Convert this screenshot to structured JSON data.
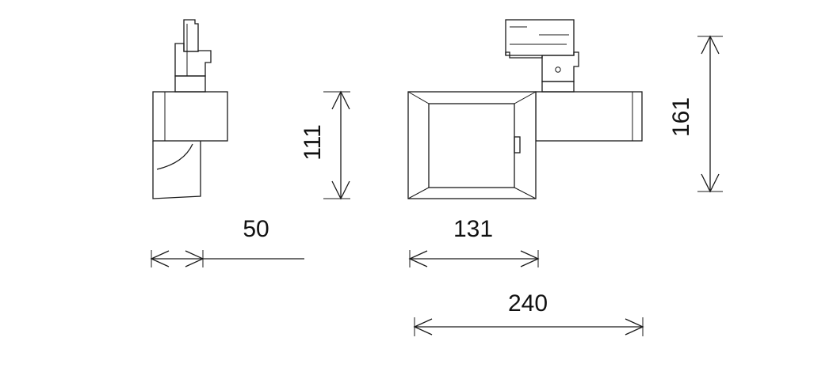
{
  "dimensions": {
    "height_side": "111",
    "depth_side": "50",
    "head_width": "131",
    "overall_length": "240",
    "overall_height": "161"
  },
  "colors": {
    "line": "#1a1a1a",
    "background": "#ffffff"
  }
}
